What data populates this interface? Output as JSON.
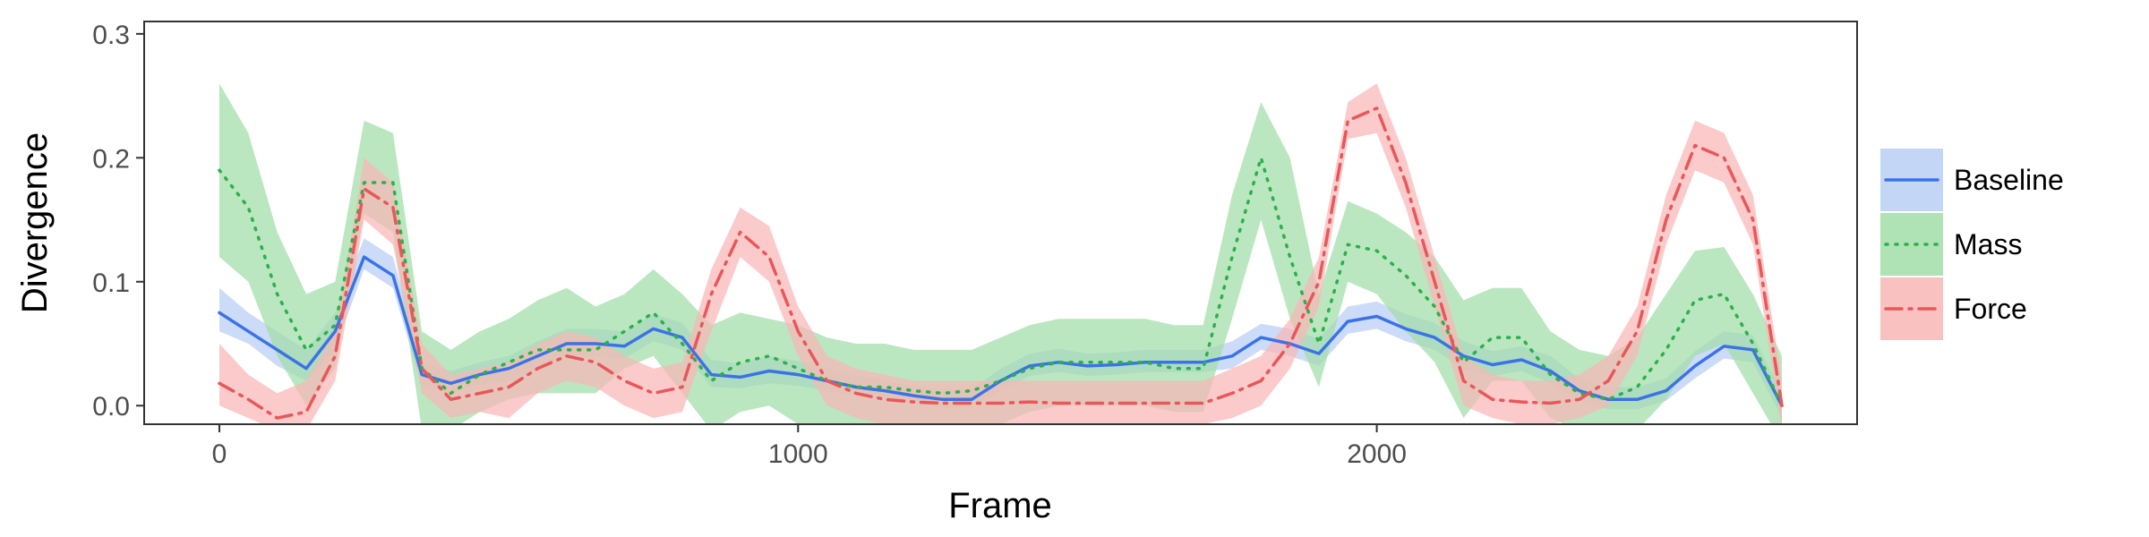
{
  "chart_data": {
    "type": "line",
    "xlabel": "Frame",
    "ylabel": "Divergence",
    "xlim": [
      -130,
      2830
    ],
    "ylim": [
      -0.015,
      0.31
    ],
    "xticks": [
      {
        "value": 0,
        "label": "0"
      },
      {
        "value": 1000,
        "label": "1000"
      },
      {
        "value": 2000,
        "label": "2000"
      }
    ],
    "yticks": [
      {
        "value": 0.0,
        "label": "0.0"
      },
      {
        "value": 0.1,
        "label": "0.1"
      },
      {
        "value": 0.2,
        "label": "0.2"
      },
      {
        "value": 0.3,
        "label": "0.3"
      }
    ],
    "grid": false,
    "legend_position": "right",
    "x": [
      0,
      50,
      100,
      150,
      200,
      250,
      300,
      350,
      400,
      450,
      500,
      550,
      600,
      650,
      700,
      750,
      800,
      850,
      900,
      950,
      1000,
      1050,
      1100,
      1150,
      1200,
      1250,
      1300,
      1350,
      1400,
      1450,
      1500,
      1550,
      1600,
      1650,
      1700,
      1750,
      1800,
      1850,
      1900,
      1950,
      2000,
      2050,
      2100,
      2150,
      2200,
      2250,
      2300,
      2350,
      2400,
      2450,
      2500,
      2550,
      2600,
      2650,
      2700
    ],
    "series": [
      {
        "name": "Baseline",
        "color": "#3b73e6",
        "band_color": "#b8cff5",
        "line_style": "solid",
        "values": [
          0.075,
          0.06,
          0.045,
          0.03,
          0.06,
          0.12,
          0.105,
          0.025,
          0.018,
          0.025,
          0.03,
          0.04,
          0.05,
          0.05,
          0.048,
          0.062,
          0.055,
          0.025,
          0.023,
          0.028,
          0.025,
          0.02,
          0.015,
          0.012,
          0.008,
          0.005,
          0.005,
          0.02,
          0.032,
          0.035,
          0.032,
          0.033,
          0.035,
          0.035,
          0.035,
          0.04,
          0.055,
          0.05,
          0.042,
          0.068,
          0.072,
          0.062,
          0.055,
          0.04,
          0.033,
          0.037,
          0.028,
          0.012,
          0.005,
          0.005,
          0.012,
          0.032,
          0.048,
          0.045,
          0.0
        ],
        "lower": [
          0.06,
          0.05,
          0.032,
          0.02,
          0.045,
          0.11,
          0.095,
          0.015,
          0.01,
          0.017,
          0.02,
          0.03,
          0.04,
          0.04,
          0.038,
          0.052,
          0.045,
          0.015,
          0.014,
          0.018,
          0.016,
          0.012,
          0.008,
          0.005,
          0.002,
          -0.002,
          -0.002,
          0.012,
          0.024,
          0.027,
          0.024,
          0.025,
          0.027,
          0.027,
          0.027,
          0.03,
          0.045,
          0.04,
          0.032,
          0.058,
          0.062,
          0.052,
          0.045,
          0.03,
          0.024,
          0.028,
          0.018,
          0.004,
          -0.003,
          -0.003,
          0.004,
          0.022,
          0.038,
          0.035,
          -0.01
        ],
        "upper": [
          0.095,
          0.075,
          0.06,
          0.045,
          0.075,
          0.135,
          0.12,
          0.036,
          0.028,
          0.035,
          0.04,
          0.052,
          0.062,
          0.062,
          0.06,
          0.074,
          0.067,
          0.037,
          0.034,
          0.04,
          0.036,
          0.03,
          0.024,
          0.021,
          0.016,
          0.013,
          0.013,
          0.03,
          0.042,
          0.046,
          0.042,
          0.043,
          0.045,
          0.045,
          0.045,
          0.052,
          0.066,
          0.062,
          0.054,
          0.08,
          0.084,
          0.074,
          0.067,
          0.052,
          0.044,
          0.048,
          0.04,
          0.022,
          0.015,
          0.015,
          0.022,
          0.044,
          0.06,
          0.057,
          0.01
        ]
      },
      {
        "name": "Mass",
        "color": "#2bb04a",
        "band_color": "#a1dea8",
        "line_style": "dotted",
        "values": [
          0.19,
          0.16,
          0.09,
          0.045,
          0.065,
          0.18,
          0.18,
          0.03,
          0.01,
          0.025,
          0.035,
          0.045,
          0.045,
          0.045,
          0.06,
          0.075,
          0.05,
          0.02,
          0.035,
          0.04,
          0.03,
          0.02,
          0.015,
          0.015,
          0.012,
          0.01,
          0.012,
          0.02,
          0.03,
          0.035,
          0.035,
          0.035,
          0.035,
          0.03,
          0.03,
          0.12,
          0.2,
          0.12,
          0.05,
          0.13,
          0.125,
          0.105,
          0.08,
          0.035,
          0.055,
          0.055,
          0.025,
          0.01,
          0.005,
          0.015,
          0.045,
          0.085,
          0.09,
          0.05,
          0.0
        ],
        "lower": [
          0.12,
          0.1,
          0.04,
          0.0,
          0.03,
          0.155,
          0.14,
          -0.02,
          -0.02,
          -0.005,
          0.005,
          0.01,
          0.01,
          0.01,
          0.03,
          0.04,
          0.01,
          -0.02,
          -0.005,
          0.0,
          -0.015,
          -0.02,
          -0.02,
          -0.02,
          -0.02,
          -0.02,
          -0.02,
          -0.015,
          -0.005,
          0.0,
          0.0,
          0.0,
          0.0,
          -0.005,
          -0.005,
          0.07,
          0.15,
          0.07,
          0.015,
          0.1,
          0.09,
          0.06,
          0.035,
          -0.01,
          0.02,
          0.02,
          -0.01,
          -0.02,
          -0.02,
          -0.02,
          0.005,
          0.04,
          0.05,
          0.01,
          -0.03
        ],
        "upper": [
          0.26,
          0.22,
          0.14,
          0.09,
          0.1,
          0.23,
          0.22,
          0.06,
          0.045,
          0.06,
          0.07,
          0.085,
          0.095,
          0.08,
          0.09,
          0.11,
          0.09,
          0.065,
          0.075,
          0.07,
          0.065,
          0.055,
          0.05,
          0.05,
          0.045,
          0.045,
          0.045,
          0.055,
          0.065,
          0.07,
          0.07,
          0.07,
          0.07,
          0.065,
          0.065,
          0.17,
          0.245,
          0.2,
          0.09,
          0.165,
          0.155,
          0.14,
          0.12,
          0.085,
          0.095,
          0.095,
          0.06,
          0.045,
          0.04,
          0.055,
          0.09,
          0.125,
          0.128,
          0.09,
          0.04
        ]
      },
      {
        "name": "Force",
        "color": "#e8575a",
        "band_color": "#f8b7b6",
        "line_style": "dashdot",
        "values": [
          0.018,
          0.005,
          -0.01,
          -0.005,
          0.04,
          0.175,
          0.16,
          0.03,
          0.005,
          0.01,
          0.015,
          0.03,
          0.04,
          0.035,
          0.02,
          0.01,
          0.015,
          0.09,
          0.14,
          0.12,
          0.06,
          0.02,
          0.01,
          0.005,
          0.003,
          0.002,
          0.002,
          0.002,
          0.003,
          0.002,
          0.002,
          0.002,
          0.002,
          0.002,
          0.002,
          0.01,
          0.02,
          0.05,
          0.1,
          0.23,
          0.24,
          0.18,
          0.1,
          0.02,
          0.005,
          0.003,
          0.002,
          0.005,
          0.02,
          0.06,
          0.15,
          0.21,
          0.2,
          0.15,
          0.0
        ],
        "lower": [
          0.0,
          -0.01,
          -0.02,
          -0.02,
          0.02,
          0.15,
          0.13,
          0.01,
          -0.01,
          -0.005,
          -0.01,
          0.01,
          0.02,
          0.015,
          0.0,
          -0.01,
          -0.005,
          0.06,
          0.12,
          0.1,
          0.04,
          0.0,
          -0.01,
          -0.015,
          -0.015,
          -0.015,
          -0.015,
          -0.015,
          -0.015,
          -0.015,
          -0.015,
          -0.015,
          -0.015,
          -0.015,
          -0.015,
          -0.01,
          0.0,
          0.03,
          0.08,
          0.215,
          0.22,
          0.16,
          0.08,
          0.0,
          -0.01,
          -0.015,
          -0.015,
          -0.01,
          0.0,
          0.04,
          0.13,
          0.19,
          0.18,
          0.13,
          -0.02
        ],
        "upper": [
          0.05,
          0.025,
          0.01,
          0.02,
          0.06,
          0.2,
          0.18,
          0.05,
          0.025,
          0.03,
          0.035,
          0.05,
          0.06,
          0.055,
          0.04,
          0.03,
          0.035,
          0.11,
          0.16,
          0.145,
          0.08,
          0.04,
          0.03,
          0.025,
          0.02,
          0.02,
          0.02,
          0.02,
          0.02,
          0.02,
          0.02,
          0.02,
          0.02,
          0.02,
          0.02,
          0.03,
          0.04,
          0.07,
          0.12,
          0.245,
          0.26,
          0.2,
          0.12,
          0.04,
          0.025,
          0.02,
          0.02,
          0.025,
          0.04,
          0.08,
          0.17,
          0.23,
          0.22,
          0.17,
          0.02
        ]
      }
    ]
  }
}
